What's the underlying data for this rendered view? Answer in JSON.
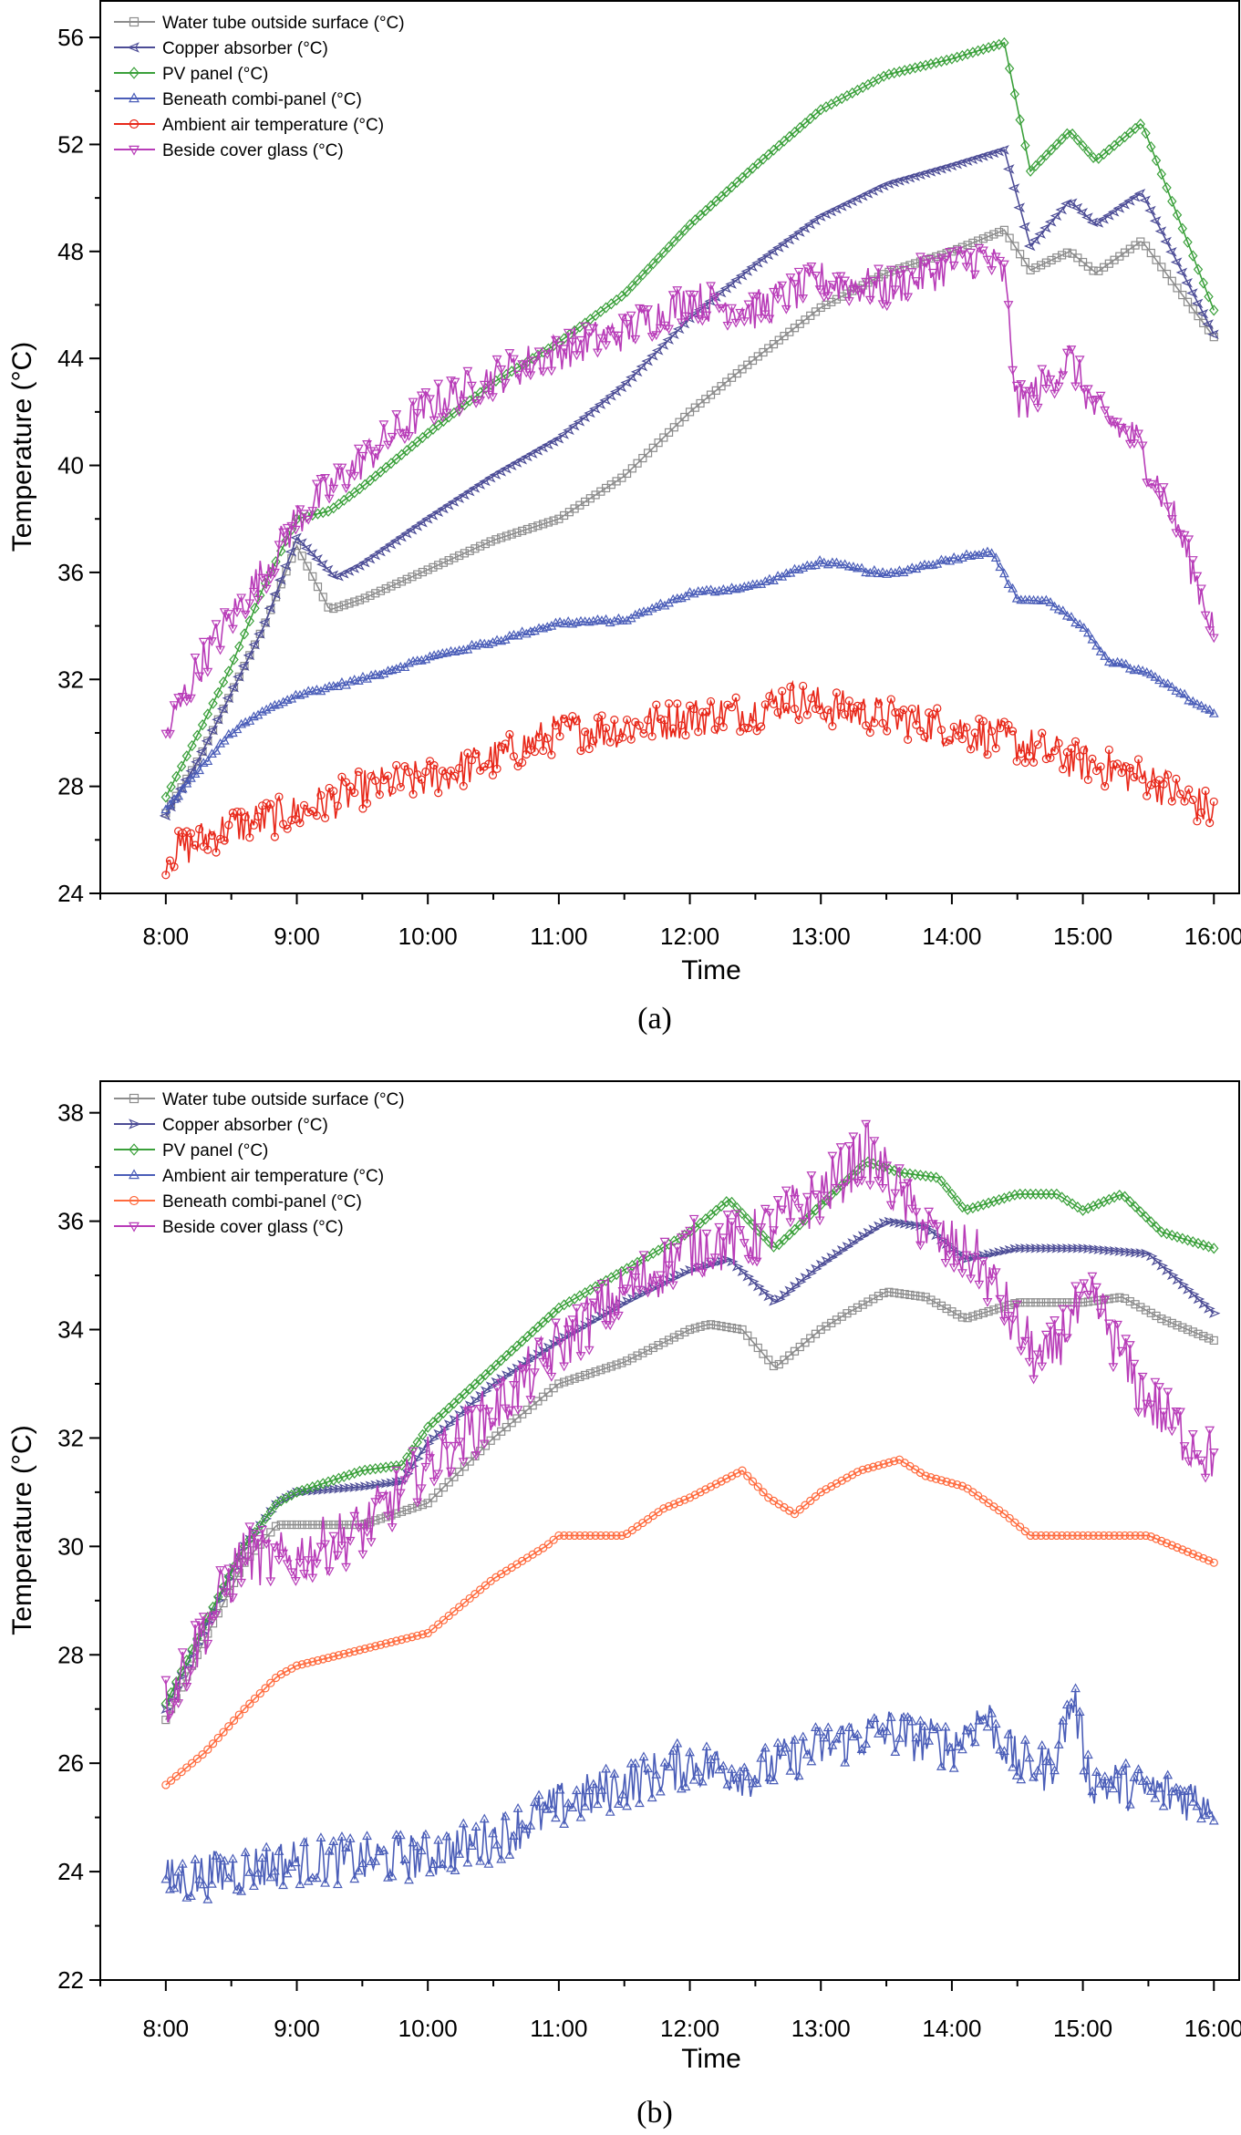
{
  "chart_data": [
    {
      "type": "line",
      "caption": "(a)",
      "xlabel": "Time",
      "ylabel": "Temperature (°C)",
      "ylim": [
        24,
        57.4
      ],
      "yticks": [
        24,
        28,
        32,
        36,
        40,
        44,
        48,
        52,
        56
      ],
      "xlim": [
        7.5,
        16.2
      ],
      "xticks": [
        8,
        9,
        10,
        11,
        12,
        13,
        14,
        15,
        16
      ],
      "xtick_labels": [
        "8:00",
        "9:00",
        "10:00",
        "11:00",
        "12:00",
        "13:00",
        "14:00",
        "15:00",
        "16:00"
      ],
      "series": [
        {
          "name": "Water tube outside surface (°C)",
          "color": "#8c8c8c",
          "marker": "square",
          "noise": 0,
          "x": [
            8.0,
            8.25,
            8.5,
            8.75,
            9.0,
            9.25,
            9.5,
            10.0,
            10.5,
            11.0,
            11.5,
            12.0,
            12.5,
            13.0,
            13.5,
            14.0,
            14.4,
            14.6,
            14.9,
            15.1,
            15.45,
            16.0
          ],
          "y": [
            27.0,
            29.0,
            31.5,
            34.0,
            37.0,
            34.6,
            35.0,
            36.1,
            37.2,
            38.0,
            39.6,
            42.0,
            44.0,
            45.9,
            47.2,
            48.0,
            48.8,
            47.3,
            48.0,
            47.2,
            48.4,
            44.8
          ]
        },
        {
          "name": "Copper absorber (°C)",
          "color": "#4c4c96",
          "marker": "diamond-left",
          "noise": 0,
          "x": [
            8.0,
            8.25,
            8.5,
            8.75,
            9.0,
            9.3,
            9.5,
            10.0,
            10.5,
            11.0,
            11.5,
            12.0,
            12.5,
            13.0,
            13.5,
            14.0,
            14.4,
            14.6,
            14.9,
            15.1,
            15.45,
            16.0
          ],
          "y": [
            26.9,
            29.0,
            31.5,
            34.0,
            37.3,
            35.8,
            36.3,
            38.0,
            39.6,
            41.0,
            43.0,
            45.5,
            47.5,
            49.3,
            50.5,
            51.2,
            51.8,
            48.2,
            49.9,
            49.0,
            50.2,
            44.9
          ]
        },
        {
          "name": "PV panel (°C)",
          "color": "#3aa03a",
          "marker": "diamond",
          "noise": 0,
          "x": [
            8.0,
            8.25,
            8.5,
            8.75,
            9.0,
            9.25,
            9.5,
            10.0,
            10.5,
            11.0,
            11.5,
            12.0,
            12.5,
            13.0,
            13.5,
            14.0,
            14.4,
            14.6,
            14.9,
            15.1,
            15.45,
            16.0
          ],
          "y": [
            27.6,
            30.0,
            32.5,
            35.5,
            38.0,
            38.3,
            39.2,
            41.2,
            43.1,
            44.6,
            46.4,
            49.0,
            51.2,
            53.3,
            54.6,
            55.2,
            55.8,
            51.0,
            52.5,
            51.4,
            52.8,
            45.8
          ]
        },
        {
          "name": "Beneath combi-panel (°C)",
          "color": "#4a5db8",
          "marker": "triangle-up",
          "noise": 0.15,
          "x": [
            8.0,
            8.25,
            8.5,
            8.75,
            9.0,
            9.5,
            10.0,
            10.5,
            11.0,
            11.5,
            12.0,
            12.5,
            13.0,
            13.5,
            14.0,
            14.3,
            14.5,
            14.75,
            15.0,
            15.2,
            15.5,
            16.0
          ],
          "y": [
            27.1,
            28.6,
            30.0,
            30.8,
            31.4,
            32.0,
            32.8,
            33.4,
            34.1,
            34.2,
            35.2,
            35.5,
            36.4,
            35.9,
            36.5,
            36.8,
            35.0,
            34.9,
            33.9,
            32.7,
            32.2,
            30.7
          ]
        },
        {
          "name": "Ambient air temperature (°C)",
          "color": "#e8281a",
          "marker": "circle",
          "noise": 1.5,
          "x": [
            8.0,
            8.5,
            9.0,
            9.5,
            10.0,
            10.5,
            11.0,
            11.5,
            12.0,
            12.5,
            12.75,
            13.0,
            13.5,
            14.0,
            14.5,
            15.0,
            15.5,
            16.0
          ],
          "y": [
            25.4,
            26.5,
            27.0,
            27.9,
            28.3,
            29.0,
            30.0,
            30.2,
            30.6,
            30.8,
            31.3,
            31.0,
            30.6,
            30.2,
            29.6,
            28.9,
            28.3,
            27.0
          ]
        },
        {
          "name": "Beside cover glass (°C)",
          "color": "#b83cb8",
          "marker": "triangle-down",
          "noise": 1.5,
          "x": [
            8.0,
            8.25,
            8.5,
            8.75,
            9.0,
            9.5,
            10.0,
            10.5,
            11.0,
            11.5,
            12.0,
            12.5,
            13.0,
            13.5,
            14.0,
            14.25,
            14.4,
            14.5,
            14.7,
            14.9,
            15.1,
            15.4,
            15.7,
            16.0
          ],
          "y": [
            29.9,
            32.5,
            34.3,
            36.0,
            38.0,
            40.2,
            42.2,
            43.3,
            44.3,
            45.0,
            46.2,
            45.8,
            46.9,
            46.6,
            47.5,
            47.8,
            47.1,
            42.2,
            43.0,
            44.0,
            42.0,
            41.0,
            38.0,
            33.9
          ]
        }
      ]
    },
    {
      "type": "line",
      "caption": "(b)",
      "xlabel": "Time",
      "ylabel": "Temperature (°C)",
      "ylim": [
        22,
        38.6
      ],
      "yticks": [
        22,
        24,
        26,
        28,
        30,
        32,
        34,
        36,
        38
      ],
      "xlim": [
        7.5,
        16.2
      ],
      "xticks": [
        8,
        9,
        10,
        11,
        12,
        13,
        14,
        15,
        16
      ],
      "xtick_labels": [
        "8:00",
        "9:00",
        "10:00",
        "11:00",
        "12:00",
        "13:00",
        "14:00",
        "15:00",
        "16:00"
      ],
      "series": [
        {
          "name": "Water tube outside surface (°C)",
          "color": "#8c8c8c",
          "marker": "square",
          "noise": 0,
          "x": [
            8.0,
            8.3,
            8.6,
            8.85,
            9.0,
            9.5,
            10.0,
            10.5,
            11.0,
            11.5,
            12.0,
            12.15,
            12.4,
            12.65,
            13.0,
            13.2,
            13.5,
            13.8,
            14.1,
            14.5,
            15.0,
            15.3,
            15.6,
            16.0
          ],
          "y": [
            26.8,
            28.3,
            29.7,
            30.4,
            30.4,
            30.4,
            30.8,
            32.0,
            33.0,
            33.4,
            34.0,
            34.1,
            34.0,
            33.3,
            34.0,
            34.3,
            34.7,
            34.6,
            34.2,
            34.5,
            34.5,
            34.6,
            34.2,
            33.8
          ]
        },
        {
          "name": "Copper absorber (°C)",
          "color": "#4c4c96",
          "marker": "diamond-right",
          "noise": 0,
          "x": [
            8.0,
            8.3,
            8.6,
            8.85,
            9.0,
            9.5,
            9.8,
            10.0,
            10.5,
            11.0,
            11.5,
            12.0,
            12.3,
            12.65,
            13.0,
            13.3,
            13.5,
            13.8,
            14.1,
            14.5,
            15.0,
            15.5,
            16.0
          ],
          "y": [
            27.0,
            28.5,
            30.0,
            30.8,
            31.0,
            31.1,
            31.2,
            31.9,
            33.0,
            33.8,
            34.5,
            35.1,
            35.3,
            34.5,
            35.2,
            35.7,
            36.0,
            35.9,
            35.3,
            35.5,
            35.5,
            35.4,
            34.3
          ]
        },
        {
          "name": "PV panel (°C)",
          "color": "#3aa03a",
          "marker": "diamond",
          "noise": 0,
          "x": [
            8.0,
            8.3,
            8.6,
            8.85,
            9.0,
            9.5,
            9.8,
            10.0,
            10.5,
            11.0,
            11.5,
            12.0,
            12.3,
            12.65,
            13.0,
            13.35,
            13.6,
            13.9,
            14.1,
            14.5,
            14.8,
            15.0,
            15.3,
            15.6,
            16.0
          ],
          "y": [
            27.1,
            28.6,
            30.0,
            30.8,
            31.0,
            31.4,
            31.5,
            32.2,
            33.3,
            34.4,
            35.1,
            35.8,
            36.4,
            35.5,
            36.3,
            37.1,
            36.9,
            36.8,
            36.2,
            36.5,
            36.5,
            36.2,
            36.5,
            35.8,
            35.5
          ]
        },
        {
          "name": "Ambient air temperature (°C)",
          "color": "#4a5db8",
          "marker": "triangle-up",
          "noise": 0.9,
          "x": [
            8.0,
            8.5,
            9.0,
            9.5,
            10.0,
            10.5,
            11.0,
            11.5,
            12.0,
            12.5,
            13.0,
            13.5,
            14.0,
            14.25,
            14.5,
            14.75,
            14.93,
            15.05,
            15.5,
            16.0
          ],
          "y": [
            23.8,
            24.0,
            24.2,
            24.2,
            24.3,
            24.6,
            25.2,
            25.6,
            26.0,
            25.8,
            26.3,
            26.6,
            26.3,
            26.9,
            26.0,
            25.9,
            27.2,
            25.7,
            25.5,
            25.3
          ]
        },
        {
          "name": "Beneath combi-panel (°C)",
          "color": "#ff6a3d",
          "marker": "circle",
          "noise": 0,
          "x": [
            8.0,
            8.3,
            8.6,
            8.85,
            9.0,
            9.5,
            10.0,
            10.5,
            10.9,
            11.0,
            11.5,
            11.8,
            12.0,
            12.4,
            12.6,
            12.8,
            13.0,
            13.3,
            13.6,
            13.8,
            14.1,
            14.4,
            14.6,
            15.0,
            15.5,
            15.8,
            16.0
          ],
          "y": [
            25.6,
            26.2,
            27.0,
            27.6,
            27.8,
            28.1,
            28.4,
            29.4,
            30.0,
            30.2,
            30.2,
            30.7,
            30.9,
            31.4,
            30.9,
            30.6,
            31.0,
            31.4,
            31.6,
            31.3,
            31.1,
            30.6,
            30.2,
            30.2,
            30.2,
            29.9,
            29.7
          ]
        },
        {
          "name": "Beside cover glass (°C)",
          "color": "#b83cb8",
          "marker": "triangle-down",
          "noise": 1.1,
          "x": [
            8.0,
            8.3,
            8.6,
            8.85,
            9.0,
            9.5,
            10.0,
            10.5,
            11.0,
            11.5,
            12.0,
            12.5,
            13.0,
            13.35,
            13.6,
            13.9,
            14.2,
            14.5,
            14.7,
            14.9,
            15.1,
            15.4,
            15.7,
            16.0
          ],
          "y": [
            27.1,
            28.5,
            29.9,
            29.7,
            29.8,
            30.3,
            31.5,
            32.5,
            33.7,
            34.7,
            35.5,
            35.7,
            36.5,
            37.3,
            36.5,
            35.6,
            35.3,
            34.0,
            33.3,
            34.2,
            34.5,
            33.0,
            32.2,
            31.6
          ]
        }
      ]
    }
  ]
}
